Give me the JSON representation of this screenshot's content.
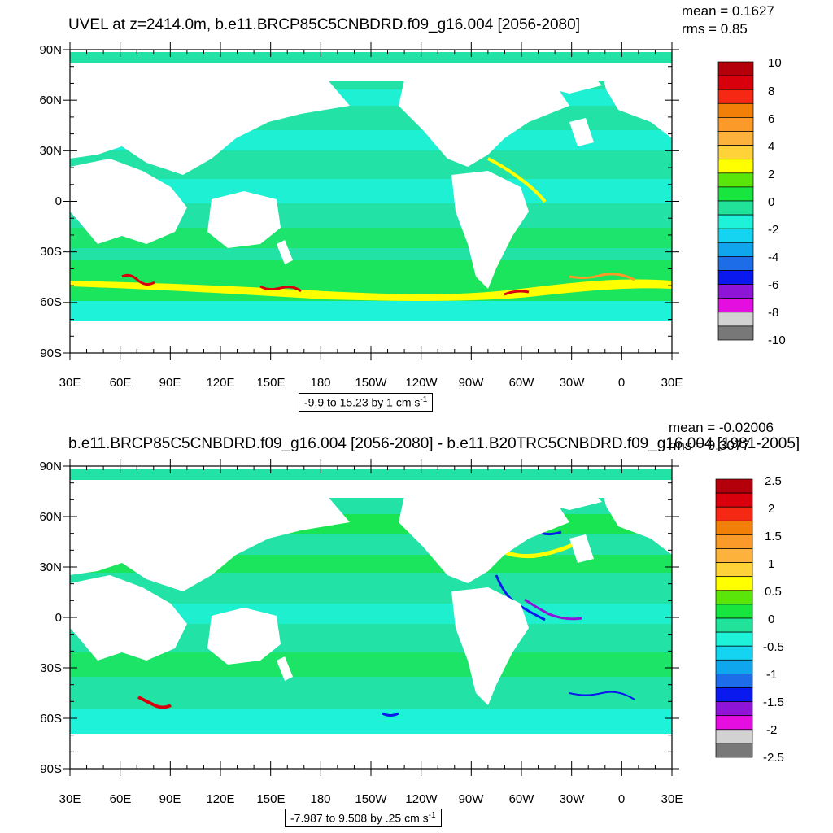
{
  "panels": [
    {
      "title": "UVEL at z=2414.0m, b.e11.BRCP85C5CNBDRD.f09_g16.004 [2056-2080]",
      "mean_label": "mean = 0.1627",
      "rms_label": "rms = 0.85",
      "range_text": "-9.9 to 15.23 by 1 cm s",
      "range_sup": "-1",
      "lat_labels": [
        "90N",
        "60N",
        "30N",
        "0",
        "30S",
        "60S",
        "90S"
      ],
      "lon_labels": [
        "30E",
        "60E",
        "90E",
        "120E",
        "150E",
        "180",
        "150W",
        "120W",
        "90W",
        "60W",
        "30W",
        "0",
        "30E"
      ],
      "colorbar_labels": [
        "10",
        "8",
        "6",
        "4",
        "2",
        "0",
        "-2",
        "-4",
        "-6",
        "-8",
        "-10"
      ]
    },
    {
      "title": "b.e11.BRCP85C5CNBDRD.f09_g16.004 [2056-2080] - b.e11.B20TRC5CNBDRD.f09_g16.004 [1981-2005]",
      "mean_label": "mean = -0.02006",
      "rms_label": "rms = 0.3077",
      "range_text": "-7.987 to 9.508 by .25 cm s",
      "range_sup": "-1",
      "lat_labels": [
        "90N",
        "60N",
        "30N",
        "0",
        "30S",
        "60S",
        "90S"
      ],
      "lon_labels": [
        "30E",
        "60E",
        "90E",
        "120E",
        "150E",
        "180",
        "150W",
        "120W",
        "90W",
        "60W",
        "30W",
        "0",
        "30E"
      ],
      "colorbar_labels": [
        "2.5",
        "2",
        "1.5",
        "1",
        "0.5",
        "0",
        "-0.5",
        "-1",
        "-1.5",
        "-2",
        "-2.5"
      ]
    }
  ],
  "colorbar_colors": [
    "#b4000a",
    "#d8000c",
    "#f52814",
    "#f28008",
    "#fb9a28",
    "#fdb23c",
    "#ffd23a",
    "#ffff00",
    "#5ae60a",
    "#18e63e",
    "#22e29a",
    "#1ef2d8",
    "#14d4f2",
    "#10a6ee",
    "#1e6de8",
    "#0a1aee",
    "#8e14d8",
    "#e40ee0",
    "#d2d2d2",
    "#787878"
  ],
  "map_colors": {
    "land": "#ffffff",
    "ocean_base": "#22e2a6",
    "cyan": "#1ef2d8",
    "green": "#18e63e",
    "yellow": "#ffff00",
    "orange": "#fb9a28",
    "red": "#d8000c",
    "blue": "#0a1aee"
  }
}
